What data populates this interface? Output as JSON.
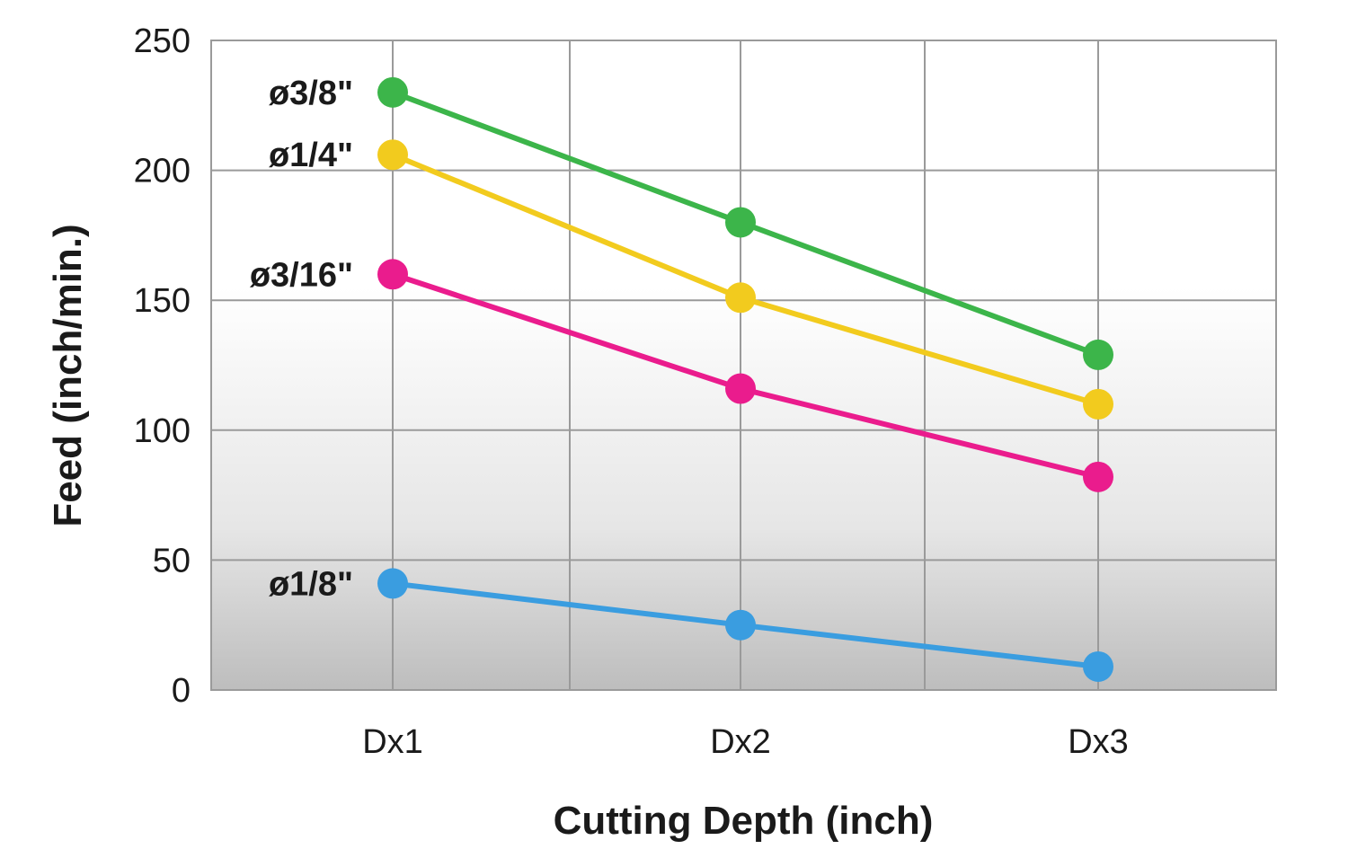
{
  "chart_data": {
    "type": "line",
    "xlabel": "Cutting Depth (inch)",
    "ylabel": "Feed (inch/min.)",
    "categories": [
      "Dx1",
      "Dx2",
      "Dx3"
    ],
    "ylim": [
      0,
      250
    ],
    "yticks": [
      "0",
      "50",
      "100",
      "150",
      "200",
      "250"
    ],
    "grid": true,
    "legend": "inline labels at left of each series",
    "series": [
      {
        "name": "ø3/8\"",
        "color": "#3cb54a",
        "values": [
          230,
          180,
          129
        ]
      },
      {
        "name": "ø1/4\"",
        "color": "#f2cb1e",
        "values": [
          206,
          151,
          110
        ]
      },
      {
        "name": "ø3/16\"",
        "color": "#ea1c8d",
        "values": [
          160,
          116,
          82
        ]
      },
      {
        "name": "ø1/8\"",
        "color": "#3a9de0",
        "values": [
          41,
          25,
          9
        ]
      }
    ]
  }
}
